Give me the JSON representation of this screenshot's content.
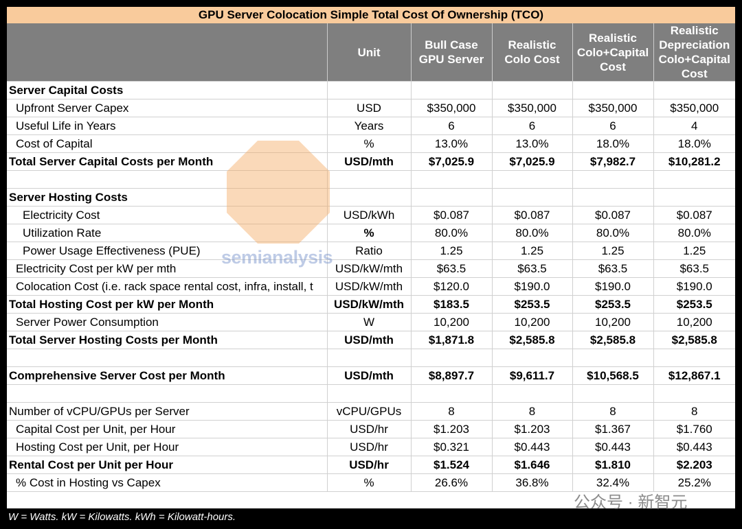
{
  "title": "GPU Server Colocation Simple Total Cost Of Ownership (TCO)",
  "table": {
    "header": [
      "Unit",
      "Bull Case GPU Server",
      "Realistic Colo Cost",
      "Realistic Colo+Capital Cost",
      "Realistic Depreciation Colo+Capital Cost"
    ],
    "rows": [
      [
        "Server Capital Costs"
      ],
      [
        "Upfront Server Capex",
        "USD",
        "$350,000",
        "$350,000",
        "$350,000",
        "$350,000"
      ],
      [
        "Useful Life in Years",
        "Years",
        "6",
        "6",
        "6",
        "4"
      ],
      [
        "Cost of Capital",
        "%",
        "13.0%",
        "13.0%",
        "18.0%",
        "18.0%"
      ],
      [
        "Total Server Capital Costs per Month",
        "USD/mth",
        "$7,025.9",
        "$7,025.9",
        "$7,982.7",
        "$10,281.2"
      ],
      null,
      [
        "Server Hosting Costs"
      ],
      [
        "Electricity Cost",
        "USD/kWh",
        "$0.087",
        "$0.087",
        "$0.087",
        "$0.087"
      ],
      [
        "Utilization Rate",
        "%",
        "80.0%",
        "80.0%",
        "80.0%",
        "80.0%"
      ],
      [
        "Power Usage Effectiveness (PUE)",
        "Ratio",
        "1.25",
        "1.25",
        "1.25",
        "1.25"
      ],
      [
        "Electricity Cost per kW per mth",
        "USD/kW/mth",
        "$63.5",
        "$63.5",
        "$63.5",
        "$63.5"
      ],
      [
        "Colocation Cost (i.e. rack space rental cost, infra, install, t",
        "USD/kW/mth",
        "$120.0",
        "$190.0",
        "$190.0",
        "$190.0"
      ],
      [
        "Total Hosting Cost per kW per Month",
        "USD/kW/mth",
        "$183.5",
        "$253.5",
        "$253.5",
        "$253.5"
      ],
      [
        "Server Power Consumption",
        "W",
        "10,200",
        "10,200",
        "10,200",
        "10,200"
      ],
      [
        "Total Server Hosting Costs per Month",
        "USD/mth",
        "$1,871.8",
        "$2,585.8",
        "$2,585.8",
        "$2,585.8"
      ],
      null,
      [
        "Comprehensive Server Cost per Month",
        "USD/mth",
        "$8,897.7",
        "$9,611.7",
        "$10,568.5",
        "$12,867.1"
      ],
      null,
      [
        "Number of vCPU/GPUs per Server",
        "vCPU/GPUs",
        "8",
        "8",
        "8",
        "8"
      ],
      [
        "Capital Cost per Unit, per Hour",
        "USD/hr",
        "$1.203",
        "$1.203",
        "$1.367",
        "$1.760"
      ],
      [
        "Hosting Cost per Unit, per Hour",
        "USD/hr",
        "$0.321",
        "$0.443",
        "$0.443",
        "$0.443"
      ],
      [
        "Rental Cost per Unit per Hour",
        "USD/hr",
        "$1.524",
        "$1.646",
        "$1.810",
        "$2.203"
      ],
      [
        "% Cost in Hosting vs Capex",
        "%",
        "26.6%",
        "36.8%",
        "32.4%",
        "25.2%"
      ]
    ]
  },
  "footnote": "W = Watts. kW = Kilowatts. kWh = Kilowatt-hours.",
  "watermarks": [
    "semianalysis",
    "公众号 · 新智元"
  ]
}
